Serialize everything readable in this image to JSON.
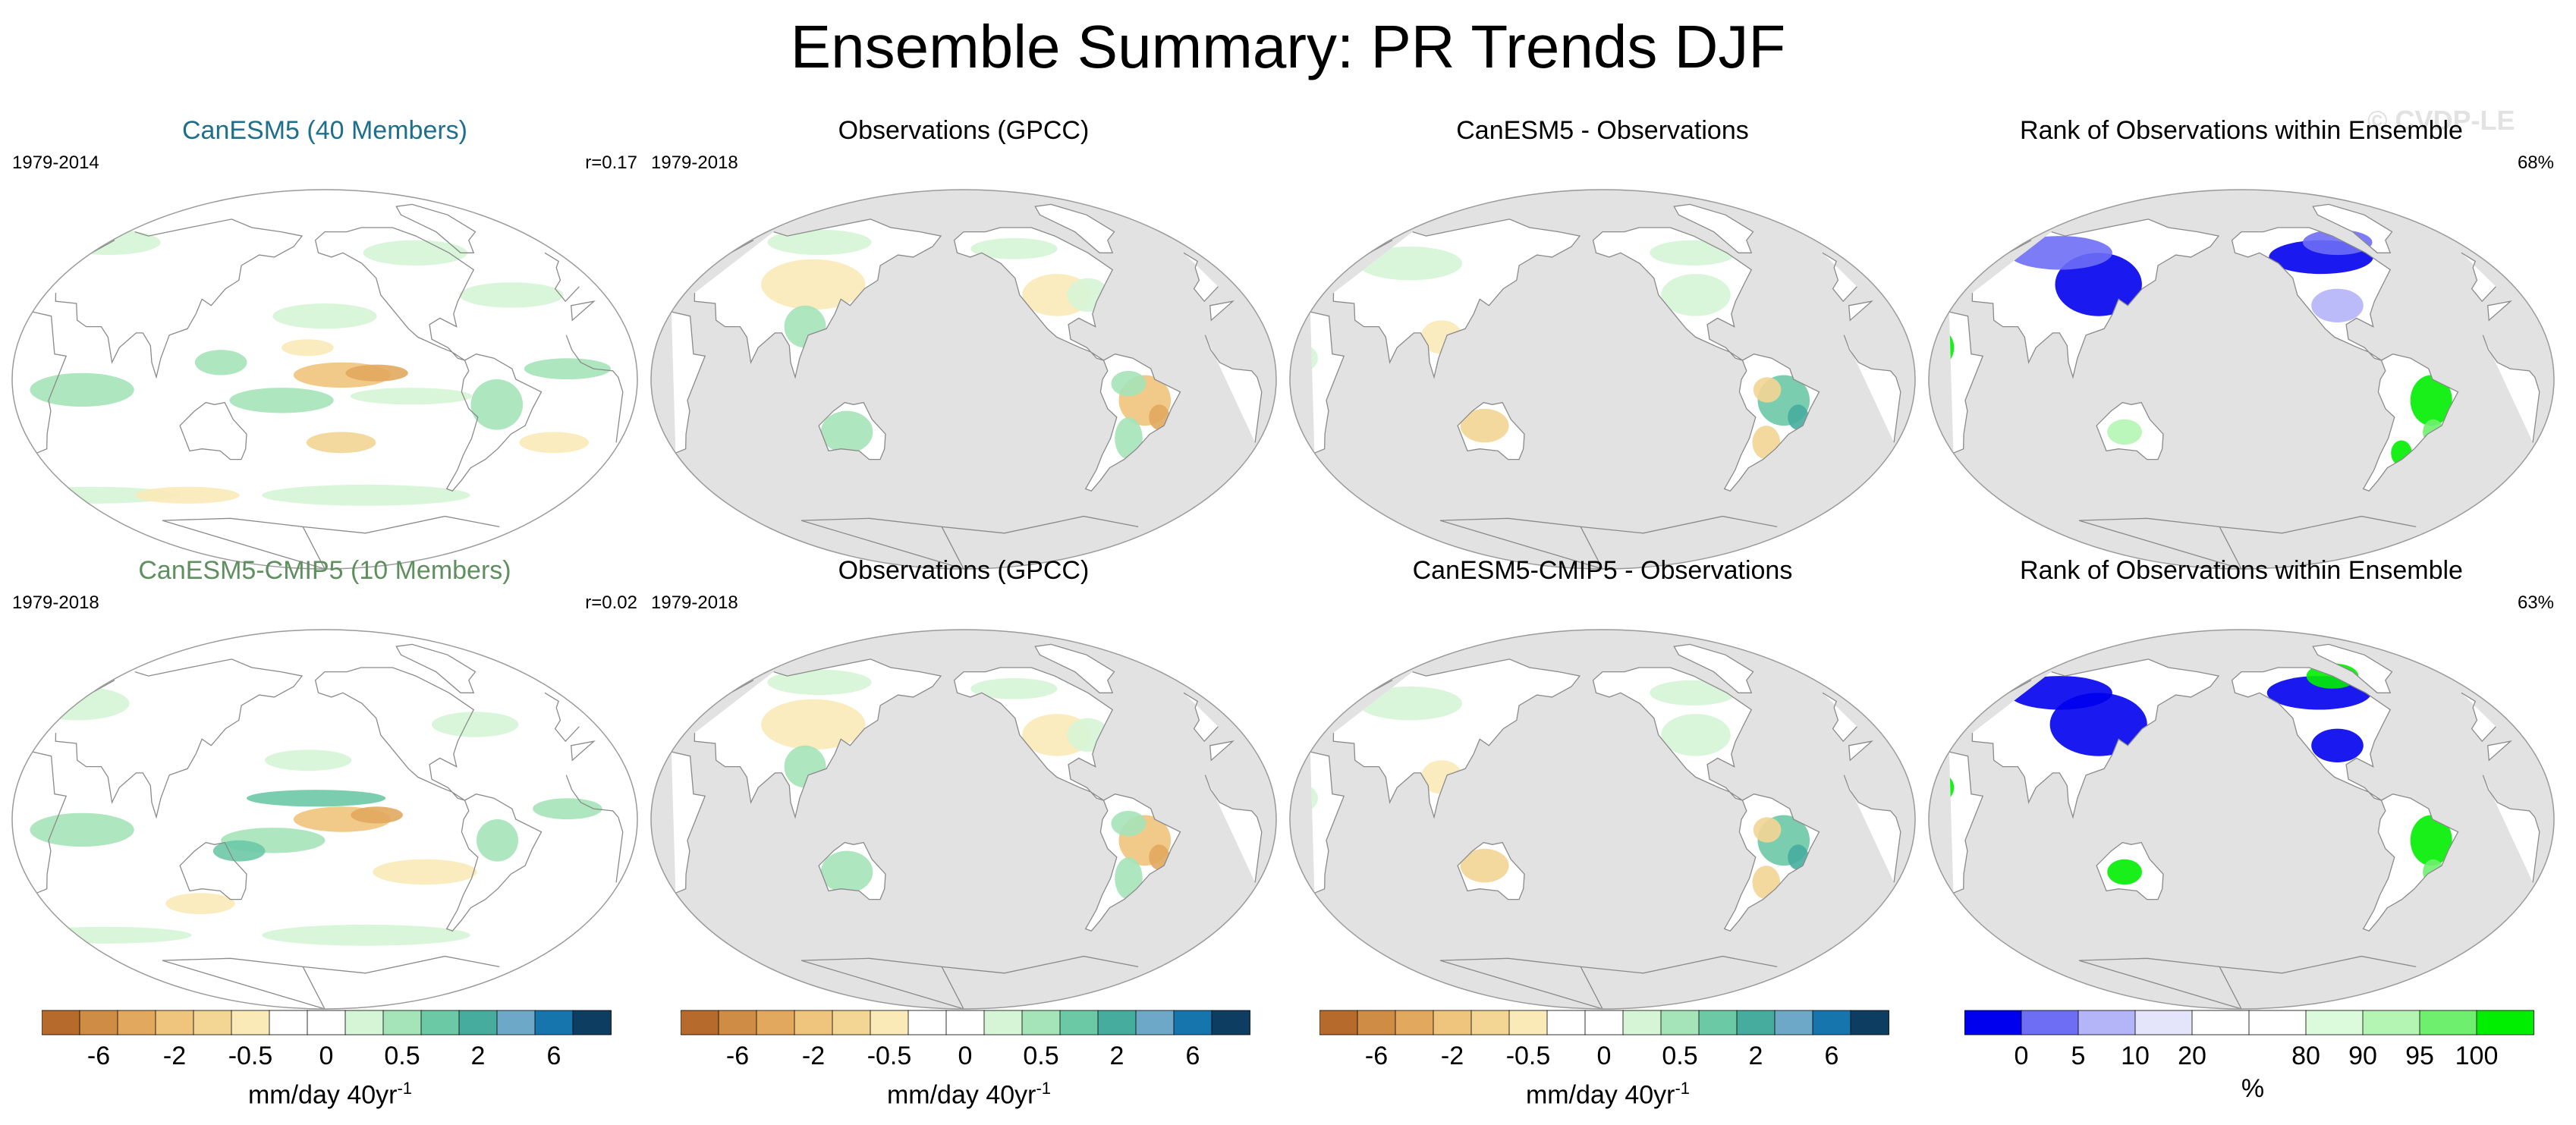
{
  "page_title": "Ensemble Summary: PR Trends DJF",
  "watermark": "© CVDP-LE",
  "chart_data": [
    {
      "type": "heatmap",
      "title": "CanESM5 (40 Members)",
      "title_color": "#1f6e8c",
      "period": "1979-2014",
      "stat": "r=0.17",
      "land_only": false,
      "blobs": [
        {
          "lon": -150,
          "lat": 2,
          "rx": 28,
          "ry": 6,
          "v": -3
        },
        {
          "lon": -130,
          "lat": 3,
          "rx": 18,
          "ry": 4,
          "v": -6
        },
        {
          "lon": 175,
          "lat": -10,
          "rx": 30,
          "ry": 6,
          "v": 1
        },
        {
          "lon": -110,
          "lat": -8,
          "rx": 35,
          "ry": 4,
          "v": 0.8
        },
        {
          "lon": -60,
          "lat": -12,
          "rx": 15,
          "ry": 12,
          "v": 1.5
        },
        {
          "lon": -20,
          "lat": 5,
          "rx": 25,
          "ry": 5,
          "v": 1
        },
        {
          "lon": 60,
          "lat": -5,
          "rx": 30,
          "ry": 8,
          "v": 1.5
        },
        {
          "lon": 140,
          "lat": 8,
          "rx": 15,
          "ry": 6,
          "v": 1.5
        },
        {
          "lon": -160,
          "lat": 30,
          "rx": 30,
          "ry": 6,
          "v": 0.8
        },
        {
          "lon": -40,
          "lat": 40,
          "rx": 30,
          "ry": 6,
          "v": 0.8
        },
        {
          "lon": -150,
          "lat": -30,
          "rx": 20,
          "ry": 5,
          "v": -1
        },
        {
          "lon": -20,
          "lat": -30,
          "rx": 20,
          "ry": 5,
          "v": -0.6
        },
        {
          "lon": -130,
          "lat": -55,
          "rx": 60,
          "ry": 5,
          "v": 0.8
        },
        {
          "lon": 30,
          "lat": -55,
          "rx": 50,
          "ry": 4,
          "v": 0.6
        },
        {
          "lon": 100,
          "lat": -55,
          "rx": 30,
          "ry": 4,
          "v": -0.6
        },
        {
          "lon": -90,
          "lat": 60,
          "rx": 30,
          "ry": 6,
          "v": 0.6
        },
        {
          "lon": 20,
          "lat": 65,
          "rx": 30,
          "ry": 6,
          "v": 0.8
        },
        {
          "lon": -170,
          "lat": 15,
          "rx": 15,
          "ry": 4,
          "v": -0.6
        }
      ]
    },
    {
      "type": "heatmap",
      "title": "Observations (GPCC)",
      "title_color": "#000000",
      "period": "1979-2018",
      "stat": "",
      "land_only": true,
      "blobs": [
        {
          "lon": -55,
          "lat": -10,
          "rx": 15,
          "ry": 12,
          "v": -3
        },
        {
          "lon": -45,
          "lat": -18,
          "rx": 6,
          "ry": 6,
          "v": -6
        },
        {
          "lon": -65,
          "lat": -2,
          "rx": 10,
          "ry": 6,
          "v": 1.5
        },
        {
          "lon": -60,
          "lat": -28,
          "rx": 8,
          "ry": 10,
          "v": 1
        },
        {
          "lon": 130,
          "lat": -25,
          "rx": 15,
          "ry": 10,
          "v": 1
        },
        {
          "lon": 120,
          "lat": 5,
          "rx": 12,
          "ry": 10,
          "v": 2
        },
        {
          "lon": -100,
          "lat": 40,
          "rx": 20,
          "ry": 10,
          "v": -0.8
        },
        {
          "lon": -80,
          "lat": 40,
          "rx": 12,
          "ry": 8,
          "v": 0.8
        },
        {
          "lon": 100,
          "lat": 45,
          "rx": 30,
          "ry": 12,
          "v": -0.6
        },
        {
          "lon": 80,
          "lat": 65,
          "rx": 30,
          "ry": 6,
          "v": 0.6
        },
        {
          "lon": 105,
          "lat": 25,
          "rx": 12,
          "ry": 10,
          "v": 1
        },
        {
          "lon": -120,
          "lat": 62,
          "rx": 25,
          "ry": 5,
          "v": 0.6
        }
      ]
    },
    {
      "type": "heatmap",
      "title": "CanESM5 - Observations",
      "title_color": "#000000",
      "period": "",
      "stat": "",
      "land_only": true,
      "blobs": [
        {
          "lon": -55,
          "lat": -10,
          "rx": 15,
          "ry": 12,
          "v": 2
        },
        {
          "lon": -45,
          "lat": -18,
          "rx": 6,
          "ry": 6,
          "v": 6
        },
        {
          "lon": -65,
          "lat": -5,
          "rx": 8,
          "ry": 6,
          "v": -1.5
        },
        {
          "lon": -60,
          "lat": -30,
          "rx": 8,
          "ry": 8,
          "v": -1
        },
        {
          "lon": 130,
          "lat": -22,
          "rx": 14,
          "ry": 8,
          "v": -1
        },
        {
          "lon": -100,
          "lat": 40,
          "rx": 20,
          "ry": 10,
          "v": 0.8
        },
        {
          "lon": -90,
          "lat": 60,
          "rx": 25,
          "ry": 6,
          "v": 0.6
        },
        {
          "lon": 60,
          "lat": 55,
          "rx": 30,
          "ry": 8,
          "v": 0.6
        },
        {
          "lon": 105,
          "lat": 20,
          "rx": 12,
          "ry": 8,
          "v": -0.6
        },
        {
          "lon": 20,
          "lat": 10,
          "rx": 15,
          "ry": 8,
          "v": 0.6
        }
      ]
    },
    {
      "type": "heatmap",
      "title": "Rank of Observations within Ensemble",
      "title_color": "#000000",
      "period": "",
      "stat": "68%",
      "land_only": true,
      "rank": true,
      "blobs": [
        {
          "lon": 105,
          "lat": 45,
          "rx": 25,
          "ry": 15,
          "v": 0
        },
        {
          "lon": -100,
          "lat": 58,
          "rx": 30,
          "ry": 8,
          "v": 0
        },
        {
          "lon": -50,
          "lat": -10,
          "rx": 12,
          "ry": 12,
          "v": 100
        },
        {
          "lon": -45,
          "lat": -25,
          "rx": 6,
          "ry": 6,
          "v": 95
        },
        {
          "lon": 20,
          "lat": 15,
          "rx": 12,
          "ry": 10,
          "v": 100
        },
        {
          "lon": -60,
          "lat": -35,
          "rx": 6,
          "ry": 6,
          "v": 100
        },
        {
          "lon": -80,
          "lat": 65,
          "rx": 20,
          "ry": 6,
          "v": 5
        },
        {
          "lon": 130,
          "lat": -25,
          "rx": 10,
          "ry": 6,
          "v": 90
        },
        {
          "lon": -100,
          "lat": 35,
          "rx": 15,
          "ry": 8,
          "v": 10
        },
        {
          "lon": 60,
          "lat": 60,
          "rx": 30,
          "ry": 8,
          "v": 5
        }
      ]
    },
    {
      "type": "heatmap",
      "title": "CanESM5-CMIP5 (10 Members)",
      "title_color": "#5f8f5f",
      "period": "1979-2018",
      "stat": "r=0.02",
      "land_only": false,
      "blobs": [
        {
          "lon": -150,
          "lat": 0,
          "rx": 28,
          "ry": 6,
          "v": -3
        },
        {
          "lon": -130,
          "lat": 2,
          "rx": 15,
          "ry": 4,
          "v": -6
        },
        {
          "lon": -165,
          "lat": 10,
          "rx": 40,
          "ry": 4,
          "v": 2
        },
        {
          "lon": 170,
          "lat": -10,
          "rx": 30,
          "ry": 6,
          "v": 1.5
        },
        {
          "lon": 150,
          "lat": -15,
          "rx": 15,
          "ry": 5,
          "v": 2
        },
        {
          "lon": -60,
          "lat": -10,
          "rx": 12,
          "ry": 10,
          "v": 1
        },
        {
          "lon": 60,
          "lat": -5,
          "rx": 30,
          "ry": 8,
          "v": 1.5
        },
        {
          "lon": -20,
          "lat": 5,
          "rx": 20,
          "ry": 5,
          "v": 1
        },
        {
          "lon": -170,
          "lat": 28,
          "rx": 25,
          "ry": 5,
          "v": 0.8
        },
        {
          "lon": -100,
          "lat": -25,
          "rx": 30,
          "ry": 6,
          "v": -0.6
        },
        {
          "lon": -130,
          "lat": -55,
          "rx": 60,
          "ry": 5,
          "v": 0.8
        },
        {
          "lon": 40,
          "lat": -55,
          "rx": 50,
          "ry": 4,
          "v": 0.6
        },
        {
          "lon": 20,
          "lat": 55,
          "rx": 30,
          "ry": 8,
          "v": 0.8
        },
        {
          "lon": -60,
          "lat": 45,
          "rx": 25,
          "ry": 6,
          "v": 0.6
        },
        {
          "lon": 120,
          "lat": -40,
          "rx": 20,
          "ry": 5,
          "v": -0.8
        }
      ]
    },
    {
      "type": "heatmap",
      "title": "Observations (GPCC)",
      "title_color": "#000000",
      "period": "1979-2018",
      "stat": "",
      "land_only": true,
      "blobs": [
        {
          "lon": -55,
          "lat": -10,
          "rx": 15,
          "ry": 12,
          "v": -3
        },
        {
          "lon": -45,
          "lat": -18,
          "rx": 6,
          "ry": 6,
          "v": -6
        },
        {
          "lon": -65,
          "lat": -2,
          "rx": 10,
          "ry": 6,
          "v": 1.5
        },
        {
          "lon": -60,
          "lat": -28,
          "rx": 8,
          "ry": 10,
          "v": 1
        },
        {
          "lon": 130,
          "lat": -25,
          "rx": 15,
          "ry": 10,
          "v": 1
        },
        {
          "lon": 120,
          "lat": 5,
          "rx": 12,
          "ry": 10,
          "v": 2
        },
        {
          "lon": -100,
          "lat": 40,
          "rx": 20,
          "ry": 10,
          "v": -0.8
        },
        {
          "lon": -80,
          "lat": 40,
          "rx": 12,
          "ry": 8,
          "v": 0.8
        },
        {
          "lon": 100,
          "lat": 45,
          "rx": 30,
          "ry": 12,
          "v": -0.6
        },
        {
          "lon": 80,
          "lat": 65,
          "rx": 30,
          "ry": 6,
          "v": 0.6
        },
        {
          "lon": 105,
          "lat": 25,
          "rx": 12,
          "ry": 10,
          "v": 1
        },
        {
          "lon": -120,
          "lat": 62,
          "rx": 25,
          "ry": 5,
          "v": 0.6
        }
      ]
    },
    {
      "type": "heatmap",
      "title": "CanESM5-CMIP5 - Observations",
      "title_color": "#000000",
      "period": "",
      "stat": "",
      "land_only": true,
      "blobs": [
        {
          "lon": -55,
          "lat": -10,
          "rx": 15,
          "ry": 12,
          "v": 2
        },
        {
          "lon": -45,
          "lat": -18,
          "rx": 6,
          "ry": 6,
          "v": 5
        },
        {
          "lon": -65,
          "lat": -5,
          "rx": 8,
          "ry": 6,
          "v": -1.5
        },
        {
          "lon": -60,
          "lat": -30,
          "rx": 8,
          "ry": 8,
          "v": -1
        },
        {
          "lon": 130,
          "lat": -22,
          "rx": 14,
          "ry": 8,
          "v": -1.5
        },
        {
          "lon": -100,
          "lat": 40,
          "rx": 20,
          "ry": 10,
          "v": 0.8
        },
        {
          "lon": -90,
          "lat": 60,
          "rx": 25,
          "ry": 6,
          "v": 0.6
        },
        {
          "lon": 60,
          "lat": 55,
          "rx": 30,
          "ry": 8,
          "v": 0.6
        },
        {
          "lon": 105,
          "lat": 20,
          "rx": 12,
          "ry": 8,
          "v": -0.6
        },
        {
          "lon": 20,
          "lat": 10,
          "rx": 15,
          "ry": 8,
          "v": 0.6
        }
      ]
    },
    {
      "type": "heatmap",
      "title": "Rank of Observations within Ensemble",
      "title_color": "#000000",
      "period": "",
      "stat": "63%",
      "land_only": true,
      "rank": true,
      "blobs": [
        {
          "lon": 105,
          "lat": 45,
          "rx": 28,
          "ry": 15,
          "v": 0
        },
        {
          "lon": -100,
          "lat": 60,
          "rx": 30,
          "ry": 8,
          "v": 0
        },
        {
          "lon": -50,
          "lat": -10,
          "rx": 12,
          "ry": 12,
          "v": 100
        },
        {
          "lon": -45,
          "lat": -25,
          "rx": 6,
          "ry": 6,
          "v": 95
        },
        {
          "lon": 20,
          "lat": 15,
          "rx": 12,
          "ry": 8,
          "v": 100
        },
        {
          "lon": 130,
          "lat": -25,
          "rx": 10,
          "ry": 6,
          "v": 100
        },
        {
          "lon": -80,
          "lat": 68,
          "rx": 15,
          "ry": 6,
          "v": 100
        },
        {
          "lon": -100,
          "lat": 35,
          "rx": 15,
          "ry": 8,
          "v": 0
        },
        {
          "lon": 60,
          "lat": 60,
          "rx": 30,
          "ry": 8,
          "v": 0
        }
      ]
    }
  ],
  "colorbars": [
    {
      "labels": [
        "-6",
        "-2",
        "-0.5",
        "0",
        "0.5",
        "2",
        "6"
      ],
      "unit": "mm/day 40yr",
      "unit_sup": "-1",
      "colors": [
        "#b66a2c",
        "#cf8c45",
        "#e2a85e",
        "#efc47c",
        "#f3d594",
        "#faeab8",
        "#ffffff",
        "#ffffff",
        "#d6f5d6",
        "#a5e3b8",
        "#6cc9a6",
        "#46ad9e",
        "#6ea8c9",
        "#1675ad",
        "#0d3d61"
      ]
    },
    {
      "labels": [
        "-6",
        "-2",
        "-0.5",
        "0",
        "0.5",
        "2",
        "6"
      ],
      "unit": "mm/day 40yr",
      "unit_sup": "-1",
      "colors": [
        "#b66a2c",
        "#cf8c45",
        "#e2a85e",
        "#efc47c",
        "#f3d594",
        "#faeab8",
        "#ffffff",
        "#ffffff",
        "#d6f5d6",
        "#a5e3b8",
        "#6cc9a6",
        "#46ad9e",
        "#6ea8c9",
        "#1675ad",
        "#0d3d61"
      ]
    },
    {
      "labels": [
        "-6",
        "-2",
        "-0.5",
        "0",
        "0.5",
        "2",
        "6"
      ],
      "unit": "mm/day 40yr",
      "unit_sup": "-1",
      "colors": [
        "#b66a2c",
        "#cf8c45",
        "#e2a85e",
        "#efc47c",
        "#f3d594",
        "#faeab8",
        "#ffffff",
        "#ffffff",
        "#d6f5d6",
        "#a5e3b8",
        "#6cc9a6",
        "#46ad9e",
        "#6ea8c9",
        "#1675ad",
        "#0d3d61"
      ]
    },
    {
      "labels": [
        "0",
        "5",
        "10",
        "20",
        "80",
        "90",
        "95",
        "100"
      ],
      "unit": "%",
      "unit_sup": "",
      "colors": [
        "#0000ee",
        "#6e6ef5",
        "#b4b4f8",
        "#e4e4fb",
        "#ffffff",
        "#ffffff",
        "#dcfadc",
        "#b4f5b4",
        "#6ef06e",
        "#00ee00"
      ]
    }
  ]
}
